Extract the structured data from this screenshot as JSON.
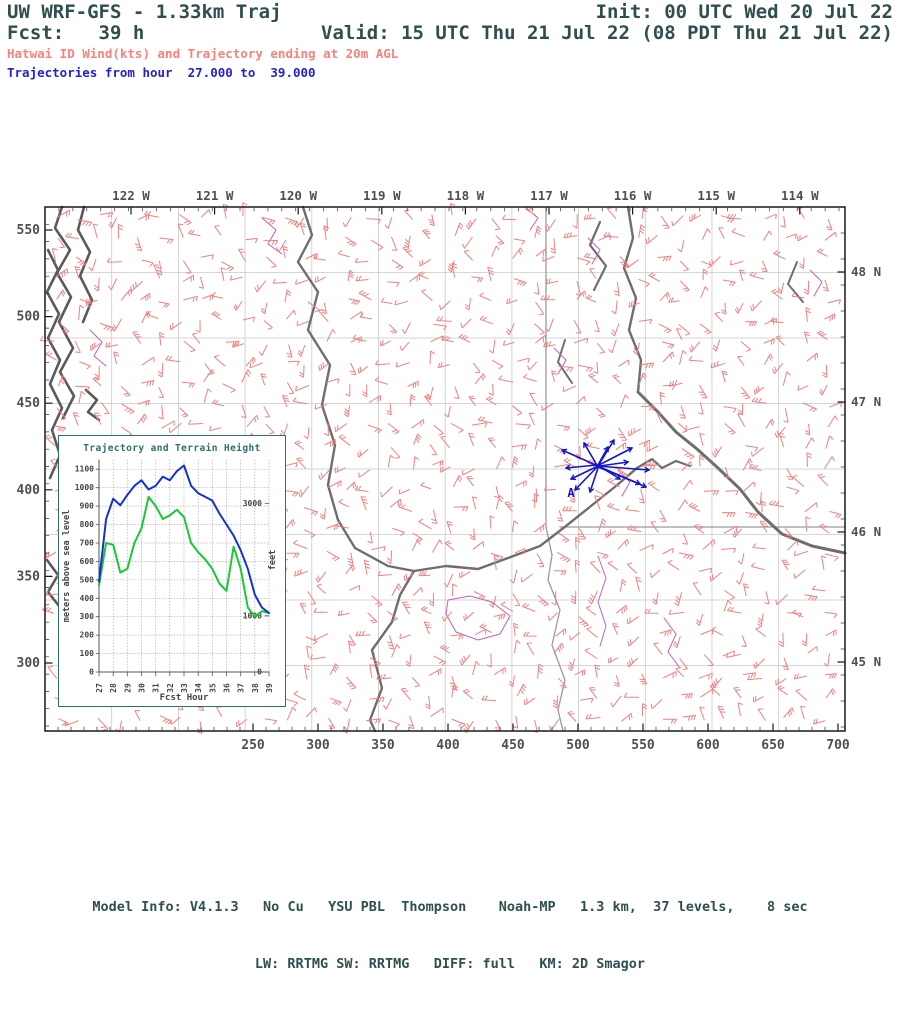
{
  "colors": {
    "header": "#2f4f4f",
    "subtitle_wind": "#f4837d",
    "subtitle_traj": "#2323cc",
    "axis_label": "#4f4f4f",
    "frame": "#1a1a1a",
    "barb": "#f08080",
    "county": "#c9c9c9",
    "state": "#9a9a9a",
    "river": "#6e6e6e",
    "coast": "#5a5a5a",
    "magenta": "#c060c0",
    "trajectory": "#1414cc",
    "inset_frame": "#2f6f6f",
    "terrain_green": "#19c832",
    "height_blue": "#1432d2"
  },
  "header": {
    "title": "UW WRF-GFS - 1.33km Traj",
    "init": "Init: 00 UTC Wed 20 Jul 22",
    "fcst": "Fcst:   39 h",
    "valid": "Valid: 15 UTC Thu 21 Jul 22 (08 PDT Thu 21 Jul 22)",
    "wind_line": "Hatwai ID Wind(kts) and Trajectory ending at 20m AGL",
    "traj_line": "Trajectories from hour  27.000 to  39.000"
  },
  "map": {
    "top_ticks": [
      "122 W",
      "121 W",
      "120 W",
      "119 W",
      "118 W",
      "117 W",
      "116 W",
      "115 W",
      "114 W"
    ],
    "right_ticks": [
      "48 N",
      "47 N",
      "46 N",
      "45 N"
    ],
    "left_ticks": [
      "550",
      "500",
      "450",
      "400",
      "350",
      "300"
    ],
    "bottom_ticks": [
      "250",
      "300",
      "350",
      "400",
      "450",
      "500",
      "550",
      "600",
      "650",
      "700"
    ],
    "station_label": "A"
  },
  "footer": {
    "line1": "Model Info: V4.1.3   No Cu   YSU PBL  Thompson    Noah-MP   1.3 km,  37 levels,    8 sec",
    "line2": "LW: RRTMG SW: RRTMG   DIFF: full   KM: 2D Smagor"
  },
  "chart_data": {
    "type": "line",
    "title": "Trajectory and Terrain Height",
    "xlabel": "Fcst Hour",
    "ylabel_left": "meters above sea level",
    "ylabel_right": "feet",
    "xlim": [
      27,
      39
    ],
    "ylim": [
      0,
      1150
    ],
    "grid": "dotted",
    "x_ticks": [
      27,
      28,
      29,
      30,
      31,
      32,
      33,
      34,
      35,
      36,
      37,
      38,
      39
    ],
    "y_ticks_left": [
      0,
      100,
      200,
      300,
      400,
      500,
      600,
      700,
      800,
      900,
      1000,
      1100
    ],
    "y_ticks_right": [
      {
        "label": "0",
        "feet": 0
      },
      {
        "label": "1000",
        "feet": 1000
      },
      {
        "label": "3000",
        "feet": 3000
      }
    ],
    "x": [
      27,
      27.5,
      28,
      28.5,
      29,
      29.5,
      30,
      30.5,
      31,
      31.5,
      32,
      32.5,
      33,
      33.5,
      34,
      34.5,
      35,
      35.5,
      36,
      36.5,
      37,
      37.5,
      38,
      38.5,
      39
    ],
    "series": [
      {
        "name": "terrain height (m)",
        "color_key": "terrain_green",
        "values": [
          470,
          700,
          690,
          540,
          560,
          700,
          780,
          950,
          900,
          830,
          850,
          880,
          840,
          700,
          650,
          610,
          560,
          480,
          440,
          680,
          560,
          350,
          300,
          330,
          320
        ]
      },
      {
        "name": "trajectory height (m ASL)",
        "color_key": "height_blue",
        "values": [
          490,
          830,
          940,
          905,
          960,
          1010,
          1040,
          990,
          1010,
          1060,
          1040,
          1090,
          1120,
          1010,
          970,
          950,
          930,
          860,
          800,
          740,
          660,
          560,
          420,
          350,
          320
        ]
      }
    ]
  }
}
